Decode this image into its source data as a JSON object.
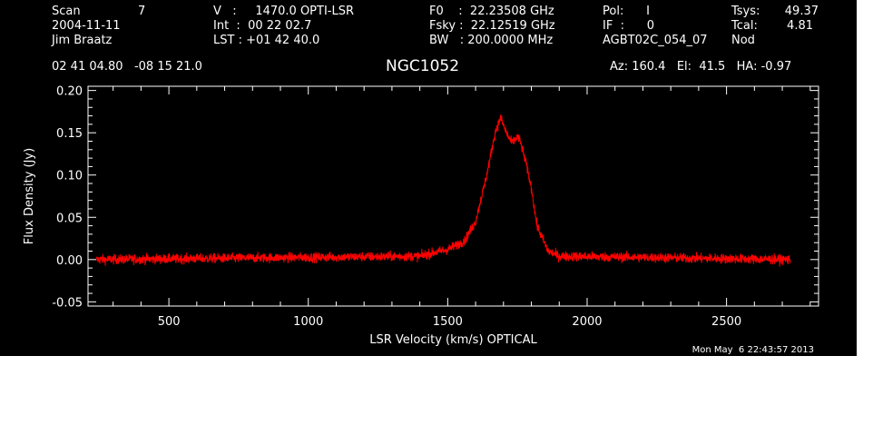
{
  "header": {
    "col1": [
      "Scan",
      "2004-11-11",
      "Jim Braatz"
    ],
    "scan_number": "7",
    "col2": [
      "V   :     1470.0 OPTI-LSR",
      "Int  :  00 22 02.7",
      "LST : +01 42 40.0"
    ],
    "col3": [
      "F0    :  22.23508 GHz",
      "Fsky :  22.12519 GHz",
      "BW   : 200.0000 MHz"
    ],
    "col4": [
      "Pol:      I",
      "IF  :      0",
      "AGBT02C_054_07"
    ],
    "col5_labels": [
      "Tsys:",
      "Tcal:",
      "Nod"
    ],
    "col5_values": [
      "49.37",
      "4.81",
      ""
    ],
    "coords": "02 41 04.80   -08 15 21.0",
    "source": "NGC1052",
    "pointing": "Az: 160.4   El:  41.5   HA: -0.97"
  },
  "timestamp": "Mon May  6 22:43:57 2013",
  "chart_data": {
    "type": "line",
    "title": "NGC1052",
    "xlabel": "LSR Velocity (km/s) OPTICAL",
    "ylabel": "Flux Density (Jy)",
    "xlim": [
      210,
      2830
    ],
    "ylim": [
      -0.055,
      0.205
    ],
    "x_ticks": [
      500,
      1000,
      1500,
      2000,
      2500
    ],
    "y_ticks": [
      -0.05,
      0.0,
      0.05,
      0.1,
      0.15,
      0.2
    ],
    "y_tick_labels": [
      "-0.05",
      "0.00",
      "0.05",
      "0.10",
      "0.15",
      "0.20"
    ],
    "grid": false,
    "series": [
      {
        "color": "#ff0000",
        "x_range": [
          240,
          2730
        ],
        "noise_rms": 0.004,
        "profile_x": [
          240,
          1400,
          1500,
          1560,
          1600,
          1640,
          1670,
          1690,
          1710,
          1730,
          1750,
          1760,
          1780,
          1800,
          1820,
          1860,
          1900,
          2730
        ],
        "profile_y": [
          0.0,
          0.004,
          0.012,
          0.022,
          0.045,
          0.1,
          0.15,
          0.168,
          0.15,
          0.138,
          0.145,
          0.14,
          0.115,
          0.085,
          0.04,
          0.01,
          0.004,
          0.0
        ]
      }
    ]
  }
}
